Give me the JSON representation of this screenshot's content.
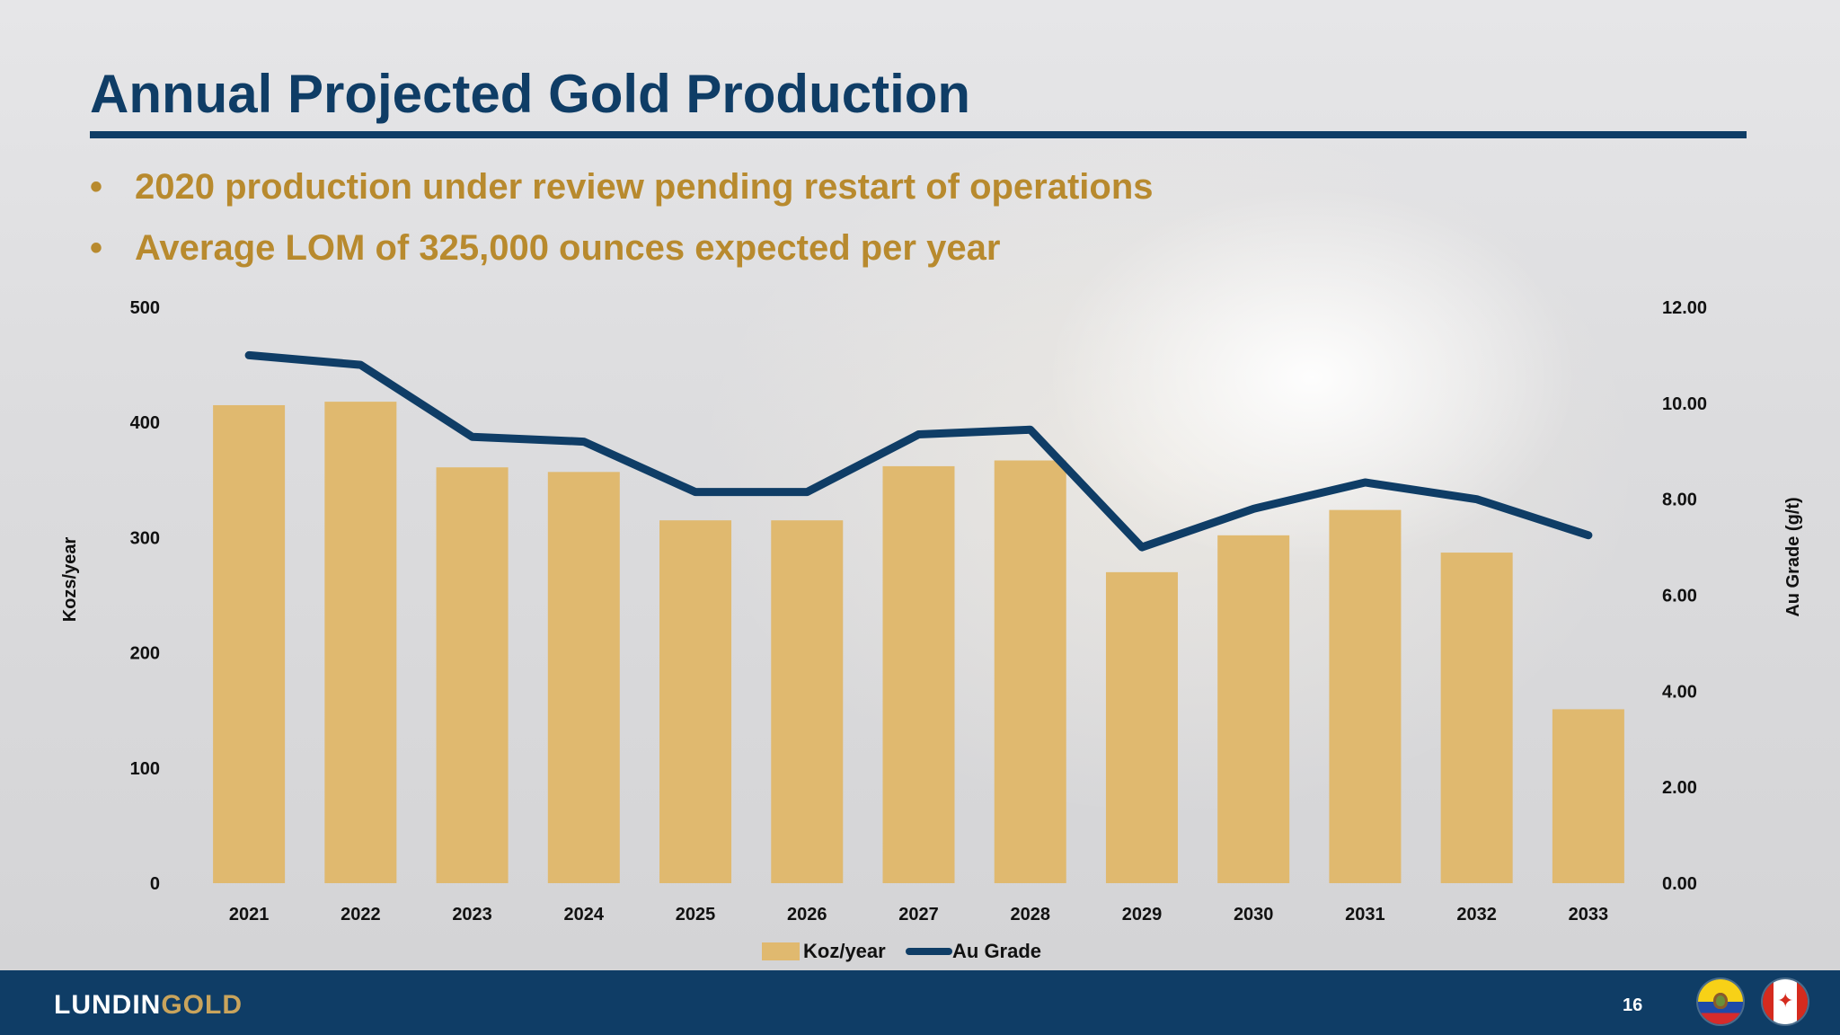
{
  "title": "Annual Projected Gold Production",
  "bullets": [
    "2020 production under review pending restart of operations",
    "Average LOM of 325,000 ounces expected per year"
  ],
  "bullet_marker": "•",
  "colors": {
    "brand_navy": "#0f3d66",
    "accent_gold": "#b88a2e",
    "bar_gold": "#e0b96f",
    "line_navy": "#0f3d66"
  },
  "chart_data": {
    "type": "bar",
    "categories": [
      "2021",
      "2022",
      "2023",
      "2024",
      "2025",
      "2026",
      "2027",
      "2028",
      "2029",
      "2030",
      "2031",
      "2032",
      "2033"
    ],
    "series": [
      {
        "name": "Koz/year",
        "type": "bar",
        "axis": "left",
        "values": [
          415,
          418,
          361,
          357,
          315,
          315,
          362,
          367,
          270,
          302,
          324,
          287,
          151
        ]
      },
      {
        "name": "Au Grade",
        "type": "line",
        "axis": "right",
        "values": [
          11.0,
          10.8,
          9.3,
          9.2,
          8.15,
          8.15,
          9.35,
          9.45,
          7.0,
          7.8,
          8.35,
          8.0,
          7.25
        ]
      }
    ],
    "ylabel": "Kozs/year",
    "ylabel_right": "Au Grade (g/t)",
    "ylim": [
      0,
      500
    ],
    "ylim_right": [
      0,
      12
    ],
    "yticks": [
      "0",
      "100",
      "200",
      "300",
      "400",
      "500"
    ],
    "yticks_right": [
      "0.00",
      "2.00",
      "4.00",
      "6.00",
      "8.00",
      "10.00",
      "12.00"
    ],
    "legend_position": "bottom",
    "grid": false
  },
  "footer": {
    "logo_part1": "LUNDIN",
    "logo_part2": "GOLD",
    "page_number": "16",
    "flag_left": "ecuador-flag-icon",
    "flag_right": "canada-flag-icon"
  }
}
